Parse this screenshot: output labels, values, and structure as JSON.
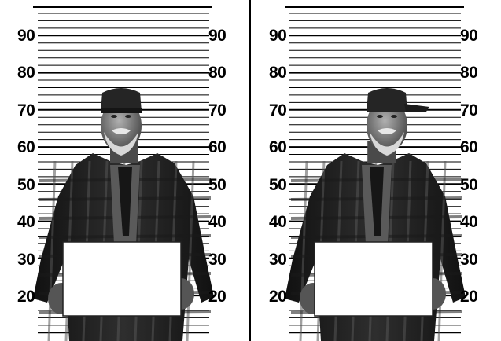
{
  "scene": {
    "panels": [
      {
        "id": "front",
        "pose": "front",
        "height_labels_left": [
          "90",
          "80",
          "70",
          "60",
          "50",
          "40",
          "30",
          "20"
        ],
        "height_labels_right": [
          "90",
          "80",
          "70",
          "60",
          "50",
          "40",
          "30",
          "20"
        ]
      },
      {
        "id": "profile",
        "pose": "three-quarter",
        "height_labels_left": [
          "90",
          "80",
          "70",
          "60",
          "50",
          "40",
          "30",
          "20"
        ],
        "height_labels_right": [
          "90",
          "80",
          "70",
          "60",
          "50",
          "40",
          "30",
          "20"
        ]
      }
    ],
    "colors": {
      "background": "#ffffff",
      "lines": "#000000",
      "jacket": "#2e2e2e",
      "skin": "#8a8a8a",
      "beard": "#d8d8d8",
      "placard": "#ffffff"
    }
  }
}
